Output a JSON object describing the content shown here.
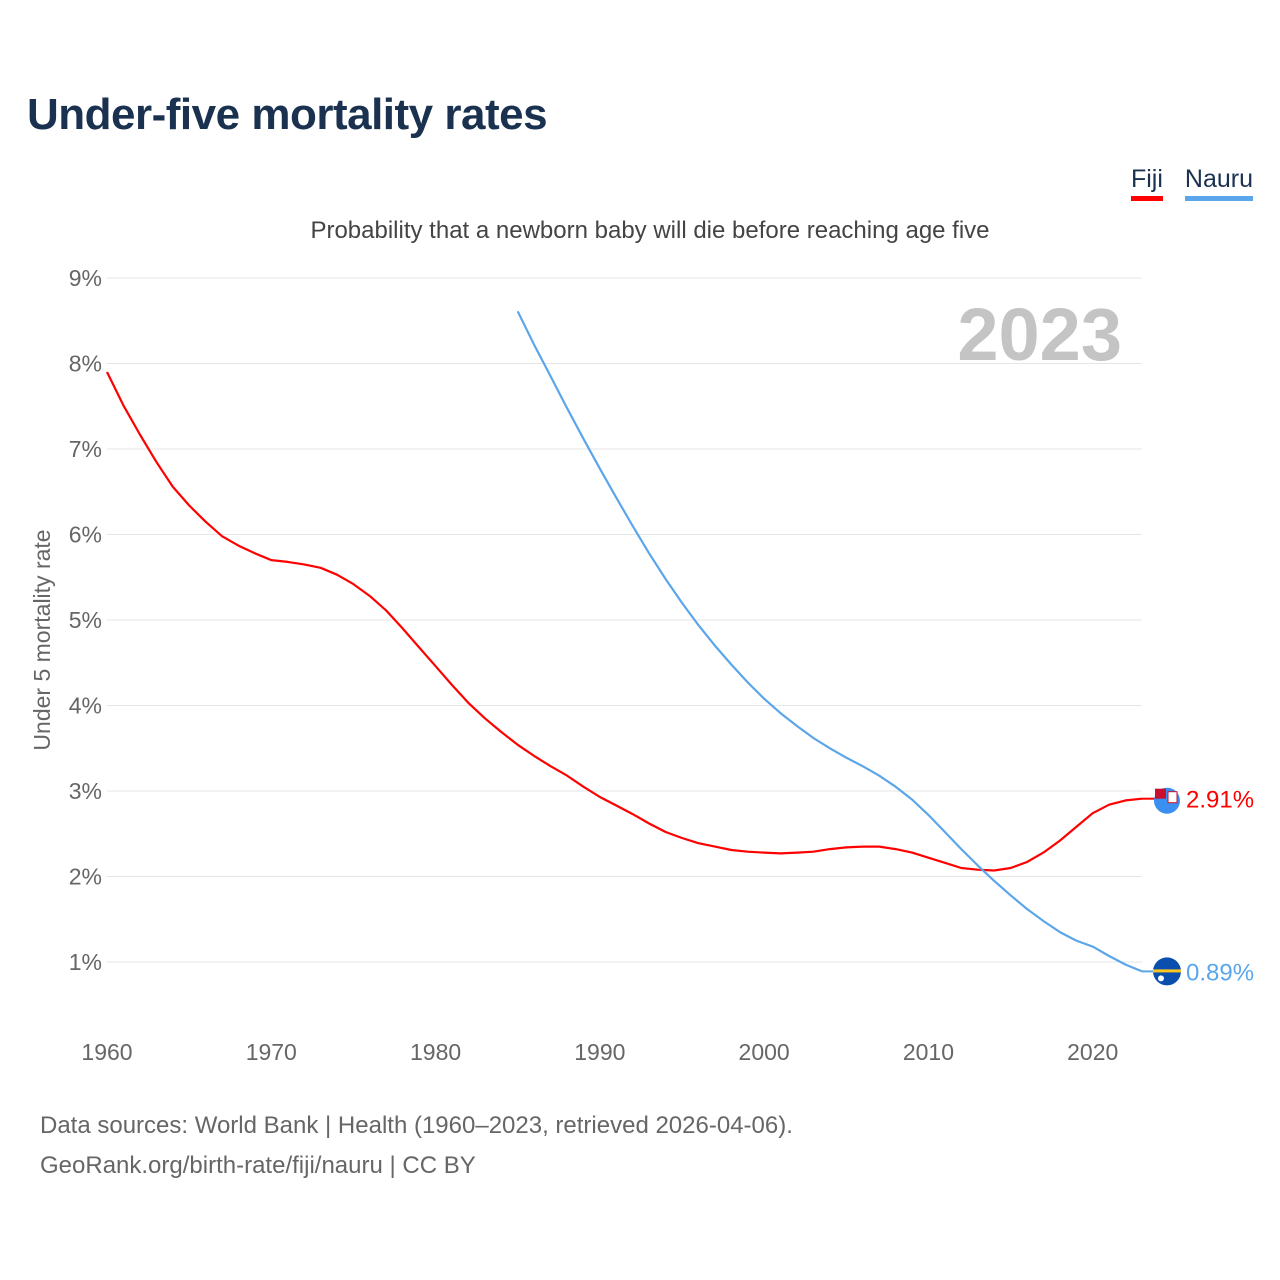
{
  "header": {
    "title": "Under-five mortality rates",
    "subtitle": "Probability that a newborn baby will die before reaching age five"
  },
  "legend": [
    {
      "label": "Fiji",
      "color": "#ff0000"
    },
    {
      "label": "Nauru",
      "color": "#5ba6ea"
    }
  ],
  "footer": {
    "sources": "Data sources: World Bank | Health (1960–2023, retrieved 2026-04-06).",
    "credit": "GeoRank.org/birth-rate/fiji/nauru | CC BY"
  },
  "chart_data": {
    "type": "line",
    "title": "Under-five mortality rates",
    "subtitle": "Probability that a newborn baby will die before reaching age five",
    "ylabel": "Under 5 mortality rate",
    "xlabel": "",
    "year_label": "2023",
    "xlim": [
      1960,
      2023
    ],
    "ylim": [
      0,
      9
    ],
    "grid": true,
    "legend_position": "top-right",
    "x_ticks": [
      "1960",
      "1970",
      "1980",
      "1990",
      "2000",
      "2010",
      "2020"
    ],
    "y_ticks": [
      "1%",
      "2%",
      "3%",
      "4%",
      "5%",
      "6%",
      "7%",
      "8%",
      "9%"
    ],
    "series": [
      {
        "name": "Fiji",
        "color": "#ff0000",
        "end_label": "2.91%",
        "start_year": 1960,
        "values": [
          7.9,
          7.51,
          7.17,
          6.85,
          6.56,
          6.34,
          6.15,
          5.98,
          5.87,
          5.78,
          5.7,
          5.68,
          5.65,
          5.61,
          5.53,
          5.42,
          5.28,
          5.11,
          4.9,
          4.68,
          4.46,
          4.24,
          4.03,
          3.85,
          3.69,
          3.54,
          3.41,
          3.29,
          3.18,
          3.05,
          2.93,
          2.83,
          2.73,
          2.62,
          2.52,
          2.45,
          2.39,
          2.35,
          2.31,
          2.29,
          2.28,
          2.27,
          2.28,
          2.29,
          2.32,
          2.34,
          2.35,
          2.35,
          2.32,
          2.28,
          2.22,
          2.16,
          2.1,
          2.08,
          2.07,
          2.1,
          2.17,
          2.28,
          2.42,
          2.58,
          2.74,
          2.84,
          2.89,
          2.91
        ]
      },
      {
        "name": "Nauru",
        "color": "#5ba6ea",
        "end_label": "0.89%",
        "start_year": 1985,
        "values": [
          8.61,
          8.22,
          7.85,
          7.48,
          7.12,
          6.77,
          6.43,
          6.1,
          5.78,
          5.48,
          5.2,
          4.94,
          4.7,
          4.48,
          4.27,
          4.08,
          3.91,
          3.76,
          3.62,
          3.5,
          3.39,
          3.29,
          3.18,
          3.05,
          2.9,
          2.72,
          2.52,
          2.32,
          2.13,
          1.95,
          1.78,
          1.62,
          1.48,
          1.35,
          1.25,
          1.18,
          1.07,
          0.97,
          0.89
        ]
      }
    ]
  }
}
